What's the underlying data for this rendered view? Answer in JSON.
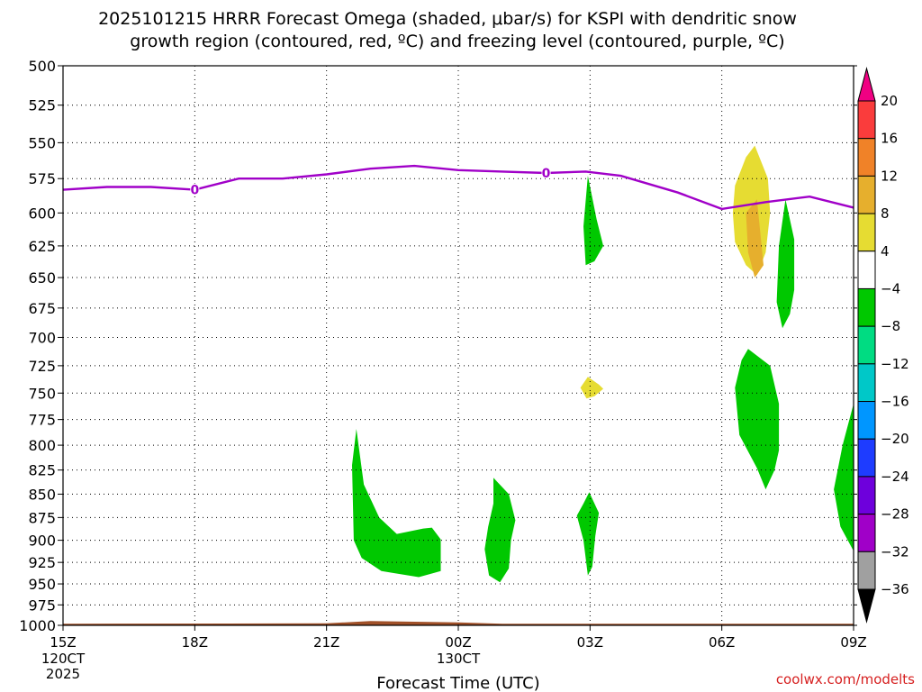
{
  "chart_data": {
    "type": "heatmap",
    "title_line1": "2025101215 HRRR Forecast Omega (shaded, μbar/s) for KSPI with dendritic snow",
    "title_line2": "growth region (contoured, red, ºC) and freezing level (contoured, purple, ºC)",
    "xlabel": "Forecast Time (UTC)",
    "credit": "coolwx.com/modelts",
    "x_hours": [
      0,
      3,
      6,
      9,
      12,
      15,
      18
    ],
    "x_tick_labels": [
      "15Z",
      "18Z",
      "21Z",
      "00Z",
      "03Z",
      "06Z",
      "09Z"
    ],
    "x_date_labels": [
      {
        "hour": 0,
        "lines": [
          "120CT",
          "2025"
        ]
      },
      {
        "hour": 9,
        "lines": [
          "130CT"
        ]
      }
    ],
    "y_ticks": [
      500,
      525,
      550,
      575,
      600,
      625,
      650,
      675,
      700,
      725,
      750,
      775,
      800,
      825,
      850,
      875,
      900,
      925,
      950,
      975,
      1000
    ],
    "ylim": [
      500,
      1000
    ],
    "grid": true,
    "colorbar": {
      "levels": [
        -36,
        -32,
        -28,
        -24,
        -20,
        -16,
        -12,
        -8,
        -4,
        4,
        8,
        12,
        16,
        20
      ],
      "level_labels": [
        "20",
        "16",
        "12",
        "8",
        "4",
        "−4",
        "−8",
        "−12",
        "−16",
        "−20",
        "−24",
        "−28",
        "−32",
        "−36"
      ],
      "colors": [
        "#000000",
        "#a0a0a0",
        "#a000c8",
        "#6e00dc",
        "#1e3cff",
        "#0096ff",
        "#00c8c8",
        "#00dc82",
        "#00c800",
        "#ffffff",
        "#e6dc32",
        "#e6af2d",
        "#f08228",
        "#fa3c3c",
        "#f00082"
      ]
    },
    "freezing_level": {
      "label": "0",
      "color": "#a000c8",
      "points": [
        [
          0,
          583
        ],
        [
          1,
          581
        ],
        [
          2,
          581
        ],
        [
          3,
          583
        ],
        [
          4,
          575
        ],
        [
          5,
          575
        ],
        [
          6,
          572
        ],
        [
          7,
          568
        ],
        [
          8,
          566
        ],
        [
          9,
          569
        ],
        [
          10,
          570
        ],
        [
          11,
          571
        ],
        [
          11.9,
          570
        ],
        [
          12.7,
          573
        ],
        [
          14,
          585
        ],
        [
          15,
          597
        ],
        [
          16,
          592
        ],
        [
          17,
          588
        ],
        [
          18,
          596
        ]
      ],
      "label_hours": [
        3,
        11
      ]
    },
    "omega_regions": [
      {
        "level": -4,
        "color": "#00c800",
        "points": [
          [
            6.68,
            784
          ],
          [
            6.85,
            840
          ],
          [
            7.2,
            875
          ],
          [
            7.6,
            893
          ],
          [
            8.2,
            887
          ],
          [
            8.4,
            886
          ],
          [
            8.6,
            899
          ],
          [
            8.6,
            935
          ],
          [
            8.1,
            942
          ],
          [
            7.25,
            935
          ],
          [
            6.8,
            920
          ],
          [
            6.62,
            900
          ],
          [
            6.58,
            820
          ]
        ]
      },
      {
        "level": -4,
        "color": "#00c800",
        "points": [
          [
            9.8,
            833
          ],
          [
            10.15,
            850
          ],
          [
            10.3,
            878
          ],
          [
            10.2,
            900
          ],
          [
            10.15,
            932
          ],
          [
            9.95,
            948
          ],
          [
            9.7,
            940
          ],
          [
            9.6,
            910
          ],
          [
            9.68,
            885
          ],
          [
            9.8,
            860
          ]
        ]
      },
      {
        "level": -4,
        "color": "#00c800",
        "points": [
          [
            11.98,
            848
          ],
          [
            12.2,
            870
          ],
          [
            12.12,
            895
          ],
          [
            12.05,
            930
          ],
          [
            11.95,
            940
          ],
          [
            11.85,
            900
          ],
          [
            11.7,
            873
          ],
          [
            11.85,
            860
          ]
        ]
      },
      {
        "level": -4,
        "color": "#00c800",
        "points": [
          [
            11.95,
            573
          ],
          [
            12.15,
            605
          ],
          [
            12.3,
            625
          ],
          [
            12.1,
            637
          ],
          [
            11.9,
            640
          ],
          [
            11.85,
            610
          ]
        ]
      },
      {
        "level": -4,
        "color": "#00c800",
        "points": [
          [
            15.6,
            710
          ],
          [
            16.1,
            725
          ],
          [
            16.3,
            760
          ],
          [
            16.3,
            805
          ],
          [
            16.2,
            825
          ],
          [
            16.0,
            845
          ],
          [
            15.8,
            823
          ],
          [
            15.4,
            790
          ],
          [
            15.3,
            745
          ],
          [
            15.45,
            720
          ]
        ]
      },
      {
        "level": -4,
        "color": "#00c800",
        "points": [
          [
            16.45,
            590
          ],
          [
            16.65,
            620
          ],
          [
            16.65,
            660
          ],
          [
            16.55,
            680
          ],
          [
            16.38,
            692
          ],
          [
            16.25,
            670
          ],
          [
            16.3,
            625
          ]
        ]
      },
      {
        "level": -4,
        "color": "#00c800",
        "points": [
          [
            18,
            760
          ],
          [
            18,
            912
          ],
          [
            17.7,
            885
          ],
          [
            17.55,
            845
          ],
          [
            17.75,
            800
          ]
        ]
      },
      {
        "level": 4,
        "color": "#e6dc32",
        "points": [
          [
            11.95,
            735
          ],
          [
            12.2,
            742
          ],
          [
            12.3,
            746
          ],
          [
            12.1,
            753
          ],
          [
            11.92,
            755
          ],
          [
            11.78,
            745
          ]
        ]
      },
      {
        "level": 4,
        "color": "#e6dc32",
        "points": [
          [
            15.75,
            552
          ],
          [
            16.05,
            575
          ],
          [
            16.1,
            600
          ],
          [
            16.0,
            630
          ],
          [
            15.8,
            648
          ],
          [
            15.55,
            640
          ],
          [
            15.3,
            622
          ],
          [
            15.25,
            600
          ],
          [
            15.3,
            580
          ],
          [
            15.55,
            560
          ]
        ]
      },
      {
        "level": 8,
        "color": "#e6af2d",
        "points": [
          [
            15.8,
            590
          ],
          [
            15.95,
            640
          ],
          [
            15.75,
            650
          ],
          [
            15.6,
            630
          ],
          [
            15.55,
            600
          ]
        ]
      }
    ],
    "ground": {
      "color": "#a05028",
      "label": "terrain"
    }
  }
}
